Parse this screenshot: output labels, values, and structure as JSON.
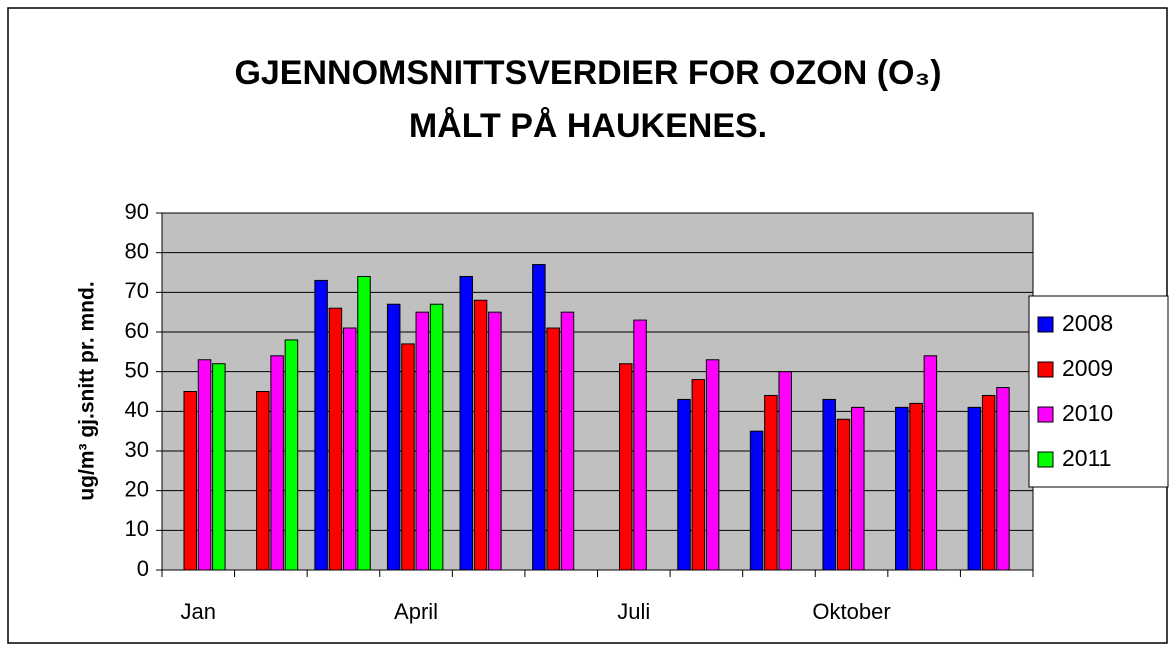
{
  "chart_data": {
    "type": "bar",
    "title": [
      "GJENNOMSNITTSVERDIER FOR OZON (O₃)",
      "MÅLT PÅ HAUKENES."
    ],
    "y_label": "ug/m³ gj.snitt pr. mnd.",
    "categories": [
      "Jan",
      null,
      null,
      "April",
      null,
      null,
      "Juli",
      null,
      null,
      "Oktober",
      null,
      null
    ],
    "series": [
      {
        "name": "2008",
        "color": "#0000ff",
        "values": [
          null,
          null,
          73,
          67,
          74,
          77,
          null,
          43,
          35,
          43,
          41,
          41
        ]
      },
      {
        "name": "2009",
        "color": "#ff0000",
        "values": [
          45,
          45,
          66,
          57,
          68,
          61,
          52,
          48,
          44,
          38,
          42,
          44
        ]
      },
      {
        "name": "2010",
        "color": "#ff00ff",
        "values": [
          53,
          54,
          61,
          65,
          65,
          65,
          63,
          53,
          50,
          41,
          54,
          46
        ]
      },
      {
        "name": "2011",
        "color": "#00ff00",
        "values": [
          52,
          58,
          74,
          67,
          null,
          null,
          null,
          null,
          null,
          null,
          null,
          null
        ]
      }
    ],
    "ylim": [
      0,
      90
    ],
    "yticks": [
      0,
      10,
      20,
      30,
      40,
      50,
      60,
      70,
      80,
      90
    ],
    "grid": true,
    "legend": "right"
  }
}
